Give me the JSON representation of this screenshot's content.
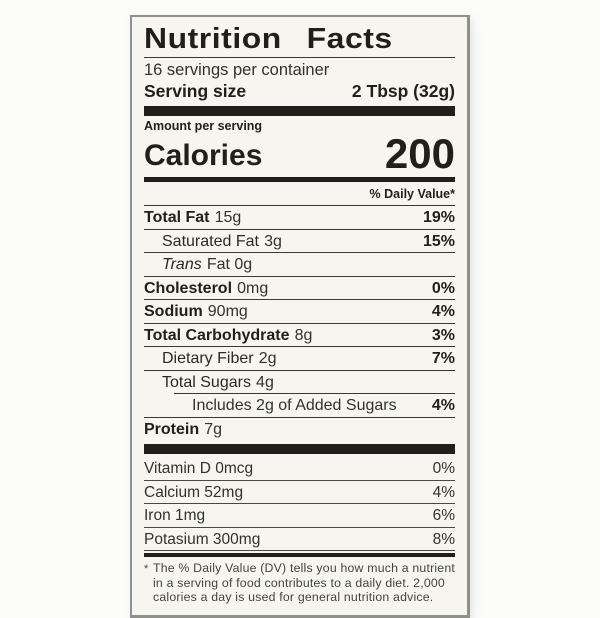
{
  "label": {
    "title": "Nutrition Facts",
    "servings_per_container": "16 servings per container",
    "serving_size_label": "Serving size",
    "serving_size_value": "2 Tbsp (32g)",
    "amount_per_serving": "Amount per serving",
    "calories_label": "Calories",
    "calories_value": "200",
    "daily_value_header": "% Daily Value*",
    "nutrients": [
      {
        "name": "Total Fat",
        "amount": "15g",
        "dv": "19%"
      },
      {
        "name": "Saturated Fat",
        "amount": "3g",
        "dv": "15%"
      },
      {
        "name": "Trans",
        "amount": "Fat 0g",
        "dv": ""
      },
      {
        "name": "Cholesterol",
        "amount": "0mg",
        "dv": "0%"
      },
      {
        "name": "Sodium",
        "amount": "90mg",
        "dv": "4%"
      },
      {
        "name": "Total Carbohydrate",
        "amount": "8g",
        "dv": "3%"
      },
      {
        "name": "Dietary Fiber",
        "amount": "2g",
        "dv": "7%"
      },
      {
        "name": "Total Sugars",
        "amount": "4g",
        "dv": ""
      },
      {
        "name": "",
        "amount": "Includes 2g of Added Sugars",
        "dv": "4%"
      },
      {
        "name": "Protein",
        "amount": "7g",
        "dv": ""
      }
    ],
    "micronutrients": [
      {
        "name": "Vitamin D 0mcg",
        "dv": "0%"
      },
      {
        "name": "Calcium 52mg",
        "dv": "4%"
      },
      {
        "name": "Iron 1mg",
        "dv": "6%"
      },
      {
        "name": "Potasium 300mg",
        "dv": "8%"
      }
    ],
    "footnote_marker": "*",
    "footnote_text": "The % Daily Value (DV) tells you how much a nutrient in a serving of food contributes to a daily diet. 2,000 calories a day is used for general nutrition advice."
  },
  "colors": {
    "label_background": "#f7f5ef",
    "page_background": "#fcfcfb",
    "bar": "#211f1b",
    "text": "#2b2925",
    "border": "#90908a"
  }
}
